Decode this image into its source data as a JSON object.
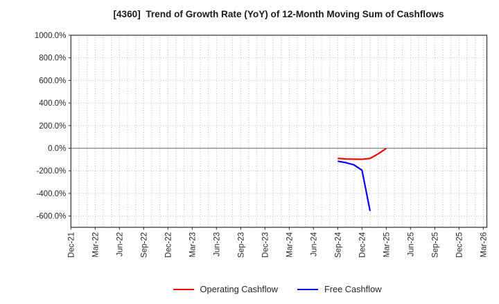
{
  "header": {
    "title": "[4360]  Trend of Growth Rate (YoY) of 12-Month Moving Sum of Cashflows"
  },
  "legend": {
    "items": [
      {
        "label": "Operating Cashflow",
        "color": "#ff0000"
      },
      {
        "label": "Free Cashflow",
        "color": "#0000ff"
      }
    ]
  },
  "chart_data": {
    "type": "line",
    "title": "[4360]  Trend of Growth Rate (YoY) of 12-Month Moving Sum of Cashflows",
    "xlabel": "",
    "ylabel": "",
    "ylim": [
      -700,
      1000
    ],
    "xlim_months": [
      0,
      51.45
    ],
    "grid": "dotted, vertical every month, horizontal every 200%",
    "zero_line": "solid gray",
    "legend_position": "bottom-center",
    "colors": {
      "grid": "#b8b8b8",
      "zero_line": "#808080",
      "border": "#2e2e2e",
      "text": "#262626"
    },
    "y_ticks": [
      {
        "value": 1000,
        "label": "1000.0%"
      },
      {
        "value": 800,
        "label": "800.0%"
      },
      {
        "value": 600,
        "label": "600.0%"
      },
      {
        "value": 400,
        "label": "400.0%"
      },
      {
        "value": 200,
        "label": "200.0%"
      },
      {
        "value": 0,
        "label": "0.0%"
      },
      {
        "value": -200,
        "label": "-200.0%"
      },
      {
        "value": -400,
        "label": "-400.0%"
      },
      {
        "value": -600,
        "label": "-600.0%"
      }
    ],
    "x_ticks": [
      {
        "month": 0,
        "label": "Dec-21"
      },
      {
        "month": 3,
        "label": "Mar-22"
      },
      {
        "month": 6,
        "label": "Jun-22"
      },
      {
        "month": 9,
        "label": "Sep-22"
      },
      {
        "month": 12,
        "label": "Dec-22"
      },
      {
        "month": 15,
        "label": "Mar-23"
      },
      {
        "month": 18,
        "label": "Jun-23"
      },
      {
        "month": 21,
        "label": "Sep-23"
      },
      {
        "month": 24,
        "label": "Dec-23"
      },
      {
        "month": 27,
        "label": "Mar-24"
      },
      {
        "month": 30,
        "label": "Jun-24"
      },
      {
        "month": 33,
        "label": "Sep-24"
      },
      {
        "month": 36,
        "label": "Dec-24"
      },
      {
        "month": 39,
        "label": "Mar-25"
      },
      {
        "month": 42,
        "label": "Jun-25"
      },
      {
        "month": 45,
        "label": "Sep-25"
      },
      {
        "month": 48,
        "label": "Dec-25"
      },
      {
        "month": 51,
        "label": "Mar-26"
      }
    ],
    "series": [
      {
        "name": "Operating Cashflow",
        "color": "#ff0000",
        "points": [
          {
            "month": 33,
            "x_label": "Sep-24",
            "y": -90
          },
          {
            "month": 34,
            "x_label": "Oct-24",
            "y": -95
          },
          {
            "month": 35,
            "x_label": "Nov-24",
            "y": -97
          },
          {
            "month": 36,
            "x_label": "Dec-24",
            "y": -98
          },
          {
            "month": 37,
            "x_label": "Jan-25",
            "y": -90
          },
          {
            "month": 38,
            "x_label": "Feb-25",
            "y": -50
          },
          {
            "month": 39,
            "x_label": "Mar-25",
            "y": -2
          }
        ]
      },
      {
        "name": "Free Cashflow",
        "color": "#0000ff",
        "points": [
          {
            "month": 33,
            "x_label": "Sep-24",
            "y": -115
          },
          {
            "month": 34,
            "x_label": "Oct-24",
            "y": -128
          },
          {
            "month": 35,
            "x_label": "Nov-24",
            "y": -147
          },
          {
            "month": 36,
            "x_label": "Dec-24",
            "y": -195
          },
          {
            "month": 37,
            "x_label": "Jan-25",
            "y": -555
          }
        ]
      }
    ]
  }
}
